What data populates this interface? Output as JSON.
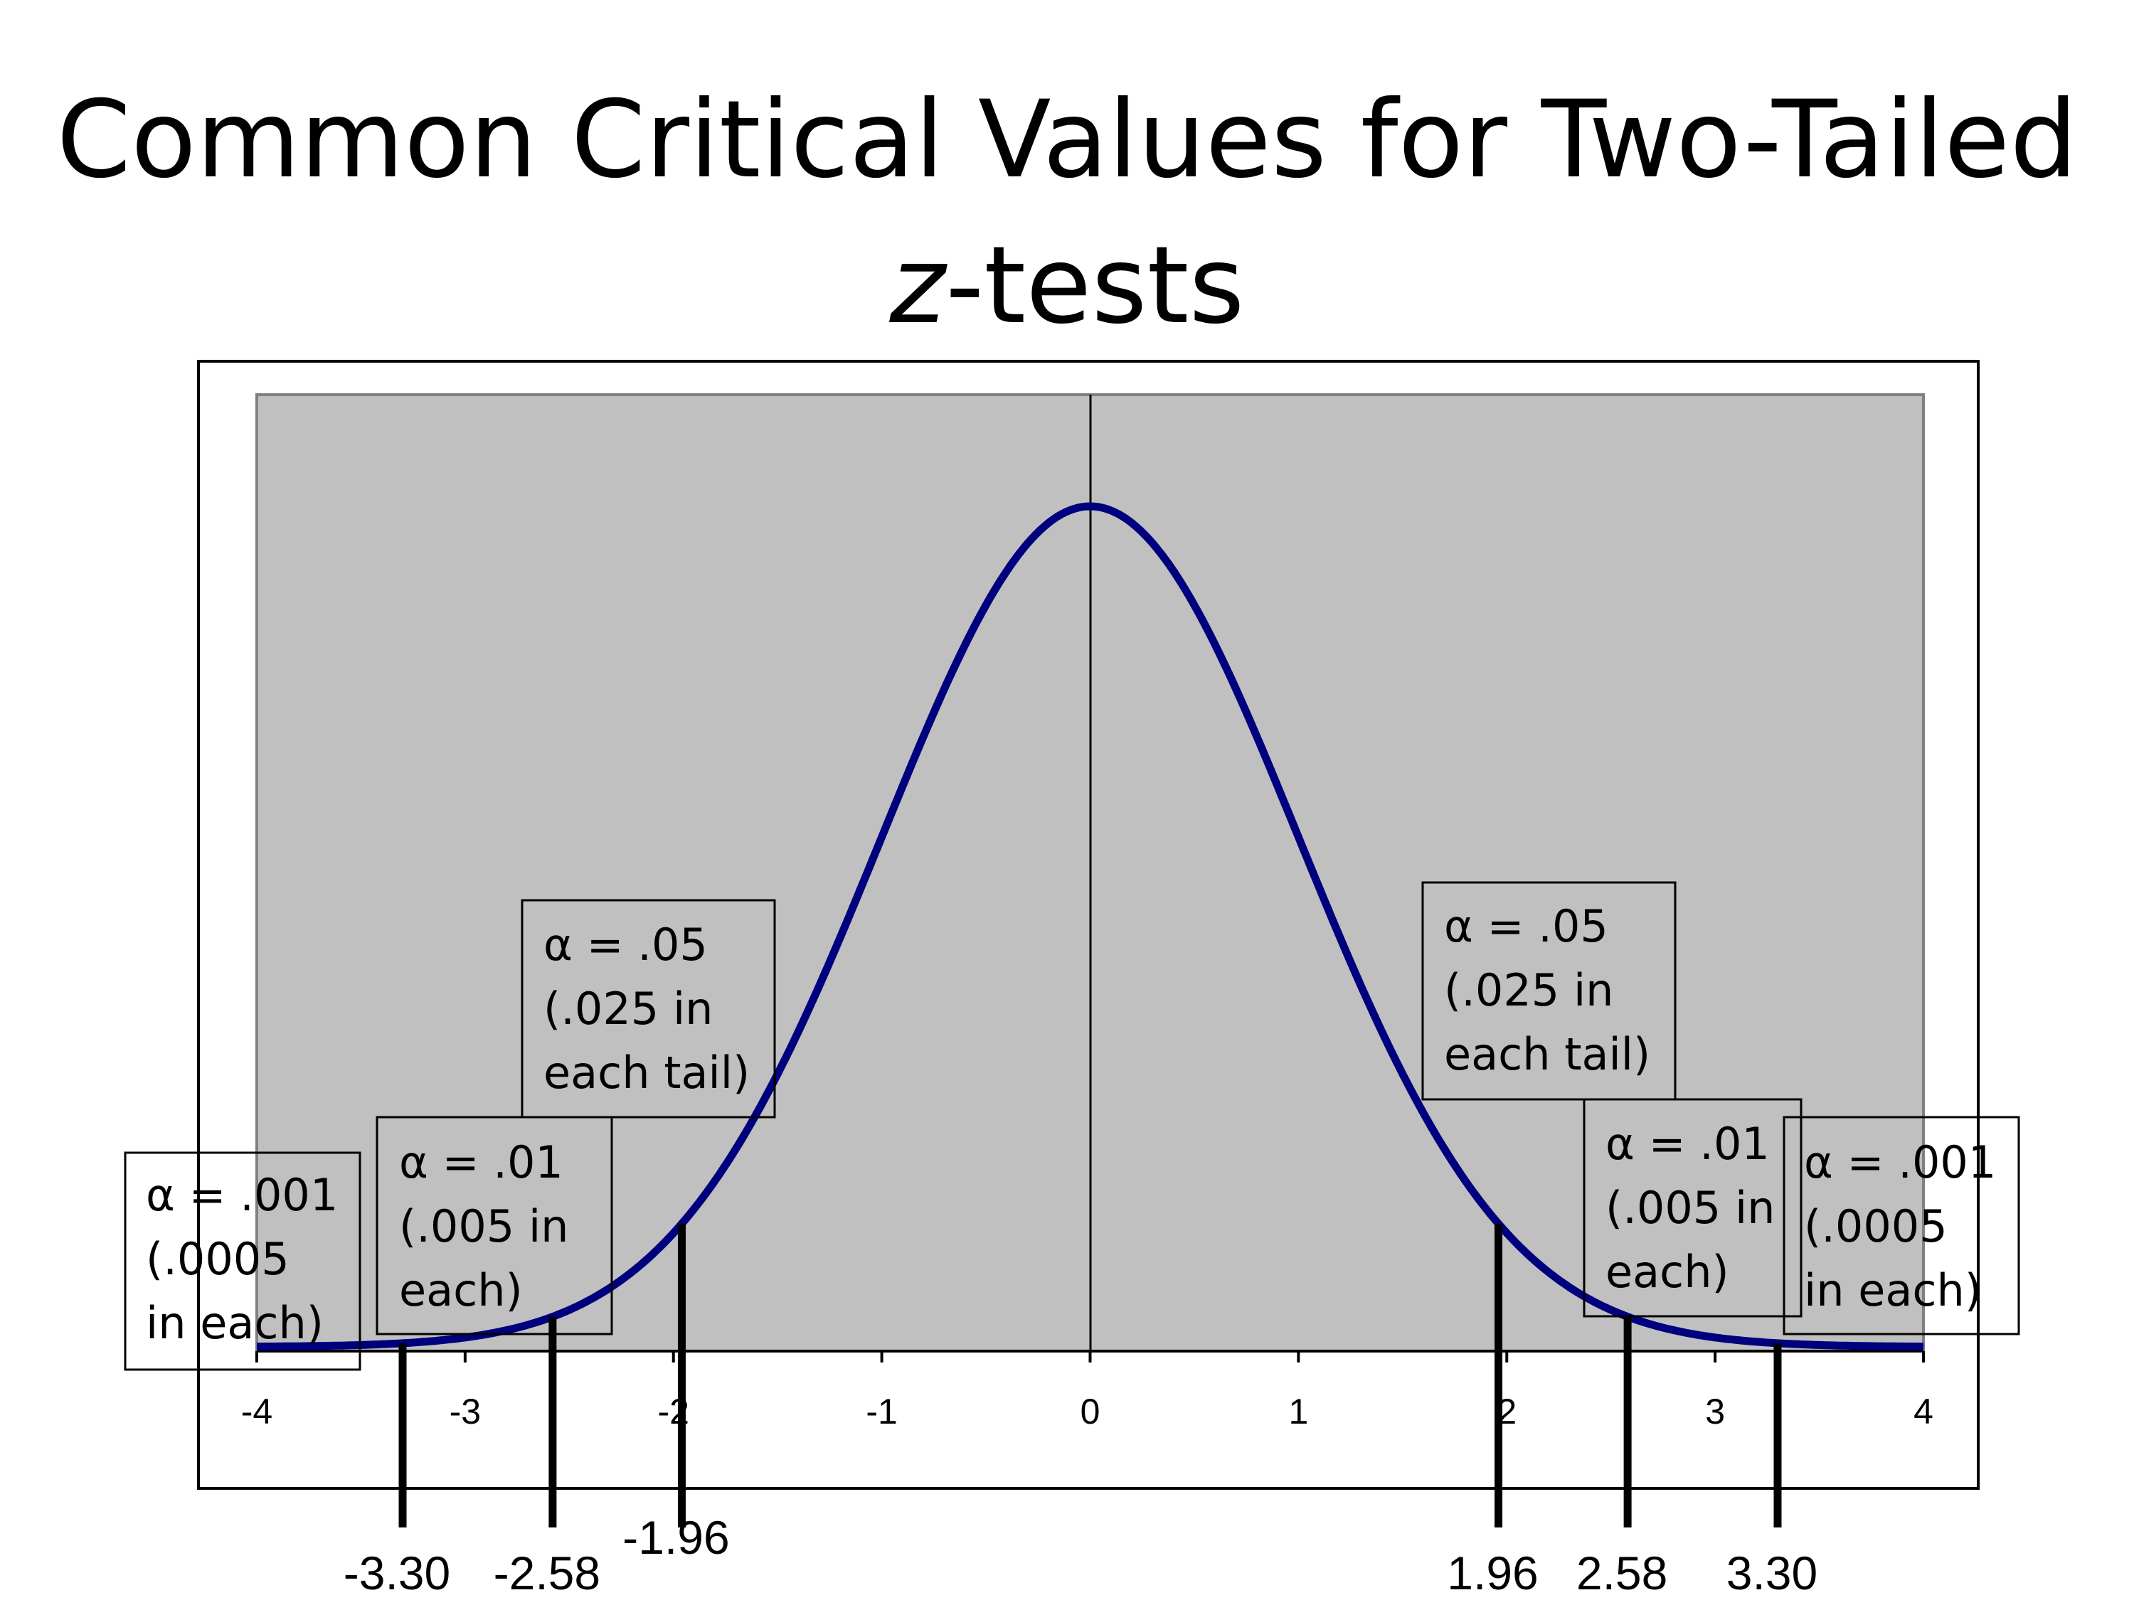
{
  "title": {
    "line1": "Common Critical Values for Two-Tailed",
    "line2_italic": "z",
    "line2_rest": "-tests"
  },
  "chart_data": {
    "type": "line",
    "series": [
      {
        "function": "standard normal density",
        "mean": 0,
        "sd": 1,
        "color": "#00007f"
      }
    ],
    "x_range": [
      -4,
      4
    ],
    "x_ticks": [
      "-4",
      "-3",
      "-2",
      "-1",
      "0",
      "1",
      "2",
      "3",
      "4"
    ],
    "plot_background": "#c0c0c0",
    "critical_values": [
      {
        "z": -3.3,
        "label": "-3.30"
      },
      {
        "z": -2.58,
        "label": "-2.58"
      },
      {
        "z": -1.96,
        "label": "-1.96"
      },
      {
        "z": 1.96,
        "label": "1.96"
      },
      {
        "z": 2.58,
        "label": "2.58"
      },
      {
        "z": 3.3,
        "label": "3.30"
      }
    ],
    "annotations": [
      {
        "id": "left-001",
        "lines": [
          "α = .001",
          "(.0005",
          "in each)"
        ]
      },
      {
        "id": "left-01",
        "lines": [
          "α = .01",
          "(.005 in",
          "each)"
        ]
      },
      {
        "id": "left-05",
        "lines": [
          "α = .05",
          "(.025 in",
          "each tail)"
        ]
      },
      {
        "id": "right-05",
        "lines": [
          "α = .05",
          "(.025 in",
          "each tail)"
        ]
      },
      {
        "id": "right-01",
        "lines": [
          "α = .01",
          "(.005 in",
          "each)"
        ]
      },
      {
        "id": "right-001",
        "lines": [
          "α = .001",
          "(.0005",
          "in each)"
        ]
      }
    ]
  }
}
